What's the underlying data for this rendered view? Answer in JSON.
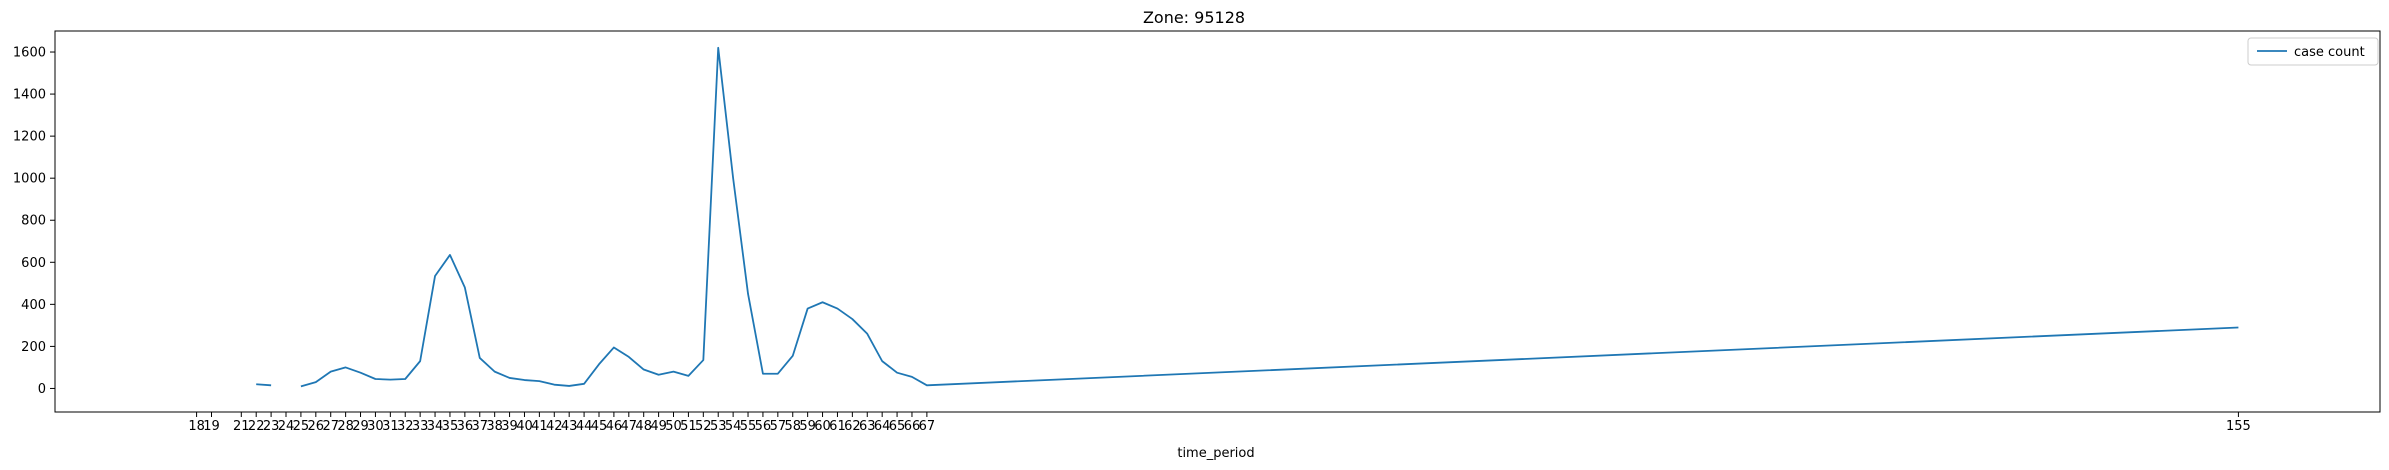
{
  "chart_data": {
    "type": "line",
    "title": "Zone: 95128",
    "xlabel": "time_period",
    "ylabel": "",
    "ylim": [
      -112,
      1700
    ],
    "yticks": [
      0,
      200,
      400,
      600,
      800,
      1000,
      1200,
      1400,
      1600
    ],
    "xlim": [
      8.5,
      164.5
    ],
    "xticks": [
      18,
      19,
      21,
      22,
      23,
      24,
      25,
      26,
      27,
      28,
      29,
      30,
      31,
      32,
      33,
      34,
      35,
      36,
      37,
      38,
      39,
      40,
      41,
      42,
      43,
      44,
      45,
      46,
      47,
      48,
      49,
      50,
      51,
      52,
      53,
      54,
      55,
      56,
      57,
      58,
      59,
      60,
      61,
      62,
      63,
      64,
      65,
      66,
      67,
      155
    ],
    "grid": false,
    "legend": "top-right",
    "series": [
      {
        "name": "case count",
        "color": "#1f77b4",
        "x": [
          18,
          19,
          21,
          22,
          23,
          24,
          25,
          26,
          27,
          28,
          29,
          30,
          31,
          32,
          33,
          34,
          35,
          36,
          37,
          38,
          39,
          40,
          41,
          42,
          43,
          44,
          45,
          46,
          47,
          48,
          49,
          50,
          51,
          52,
          53,
          54,
          55,
          56,
          57,
          58,
          59,
          60,
          61,
          62,
          63,
          64,
          65,
          66,
          67,
          155
        ],
        "y": [
          null,
          null,
          null,
          20,
          15,
          null,
          10,
          30,
          80,
          100,
          75,
          45,
          42,
          45,
          130,
          535,
          635,
          480,
          145,
          80,
          50,
          40,
          35,
          18,
          12,
          22,
          115,
          195,
          150,
          90,
          65,
          80,
          60,
          135,
          1620,
          1000,
          450,
          70,
          70,
          155,
          380,
          410,
          380,
          330,
          260,
          130,
          75,
          55,
          15,
          290
        ]
      }
    ]
  }
}
